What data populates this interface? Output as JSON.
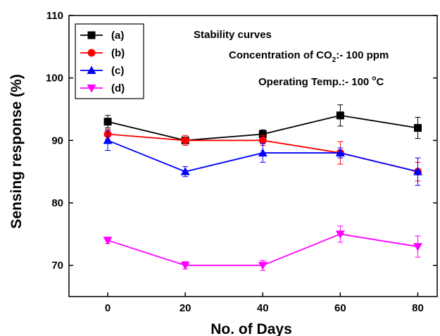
{
  "chart_data": {
    "type": "line",
    "xlabel": "No. of Days",
    "ylabel": "Sensing response (%)",
    "xlim": [
      -10,
      85
    ],
    "ylim": [
      65,
      110
    ],
    "x_ticks": [
      0,
      20,
      40,
      60,
      80
    ],
    "y_ticks": [
      70,
      80,
      90,
      100,
      110
    ],
    "grid": false,
    "legend_position": "top-left",
    "annotations": {
      "title": "Stability curves",
      "concentration_prefix": "Concentration of CO",
      "concentration_sub": "2",
      "concentration_suffix": ":- 100 ppm",
      "temperature_prefix": "Operating Temp.:- 100 ",
      "temperature_sup": "o",
      "temperature_suffix": "C"
    },
    "series": [
      {
        "name": "(a)",
        "color": "#000000",
        "marker": "square",
        "x": [
          0,
          20,
          40,
          60,
          80
        ],
        "y": [
          93,
          90,
          91,
          94,
          92
        ],
        "err": [
          1.0,
          0.5,
          0.7,
          1.7,
          1.7
        ]
      },
      {
        "name": "(b)",
        "color": "#ff0000",
        "marker": "circle",
        "x": [
          0,
          20,
          40,
          60,
          80
        ],
        "y": [
          91,
          90,
          90,
          88,
          85
        ],
        "err": [
          0.8,
          0.8,
          0.8,
          1.8,
          1.5
        ]
      },
      {
        "name": "(c)",
        "color": "#0000ff",
        "marker": "triangle-up",
        "x": [
          0,
          20,
          40,
          60,
          80
        ],
        "y": [
          90,
          85,
          88,
          88,
          85
        ],
        "err": [
          1.6,
          0.8,
          1.5,
          0.8,
          2.2
        ]
      },
      {
        "name": "(d)",
        "color": "#ff00ff",
        "marker": "triangle-down",
        "x": [
          0,
          20,
          40,
          60,
          80
        ],
        "y": [
          74,
          70,
          70,
          75,
          73
        ],
        "err": [
          0.5,
          0.6,
          0.8,
          1.3,
          1.7
        ]
      }
    ]
  }
}
